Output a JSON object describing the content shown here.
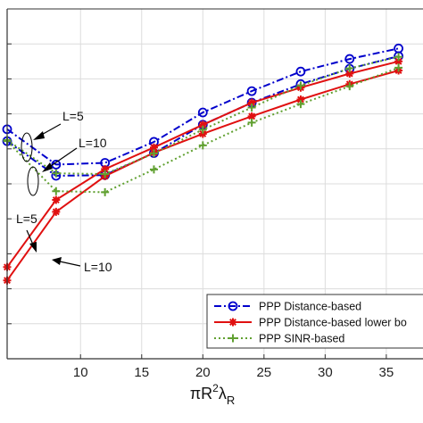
{
  "chart_data": {
    "type": "line",
    "title": "",
    "xlabel": {
      "base": "πR",
      "sup": "2",
      "main": "λ",
      "sub": "R"
    },
    "ylabel": "",
    "xlim": [
      4,
      38
    ],
    "ylim": [
      0,
      1
    ],
    "x_ticks": [
      10,
      15,
      20,
      25,
      30,
      35
    ],
    "y_gridlines": 9,
    "grid": true,
    "legend_position": "bottom-right",
    "series": [
      {
        "name": "PPP Distance-based",
        "color": "#0000cc",
        "line_style": "dashdot",
        "marker": "circle",
        "groups": [
          {
            "x": [
              4,
              8,
              12,
              16,
              20,
              24,
              28,
              32,
              36
            ],
            "y": [
              0.656,
              0.555,
              0.56,
              0.62,
              0.704,
              0.765,
              0.821,
              0.857,
              0.887
            ]
          },
          {
            "x": [
              4,
              8,
              12,
              16,
              20,
              24,
              28,
              32,
              36
            ],
            "y": [
              0.622,
              0.523,
              0.525,
              0.588,
              0.669,
              0.732,
              0.785,
              0.829,
              0.865
            ]
          }
        ]
      },
      {
        "name": "PPP Distance-based lower bo",
        "color": "#e01010",
        "line_style": "solid",
        "marker": "star",
        "groups": [
          {
            "x": [
              4,
              8,
              12,
              16,
              20,
              24,
              28,
              32,
              36
            ],
            "y": [
              0.262,
              0.454,
              0.542,
              0.604,
              0.669,
              0.732,
              0.775,
              0.815,
              0.85
            ]
          },
          {
            "x": [
              4,
              8,
              12,
              16,
              20,
              24,
              28,
              32,
              36
            ],
            "y": [
              0.224,
              0.42,
              0.522,
              0.589,
              0.643,
              0.693,
              0.741,
              0.785,
              0.824
            ]
          }
        ]
      },
      {
        "name": "PPP SINR-based",
        "color": "#60a030",
        "line_style": "dotted",
        "marker": "plus",
        "groups": [
          {
            "x": [
              4,
              8,
              12,
              16,
              20,
              24,
              28,
              32,
              36
            ],
            "y": [
              0.625,
              0.53,
              0.528,
              0.587,
              0.655,
              0.718,
              0.781,
              0.83,
              0.863
            ]
          },
          {
            "x": [
              4,
              8,
              12,
              16,
              20,
              24,
              28,
              32,
              36
            ],
            "y": [
              0.622,
              0.479,
              0.476,
              0.541,
              0.61,
              0.675,
              0.728,
              0.779,
              0.832
            ]
          }
        ]
      }
    ],
    "annotations": [
      {
        "text": "L=5"
      },
      {
        "text": "L=10"
      },
      {
        "text": "L=5"
      },
      {
        "text": "L=10"
      }
    ]
  }
}
